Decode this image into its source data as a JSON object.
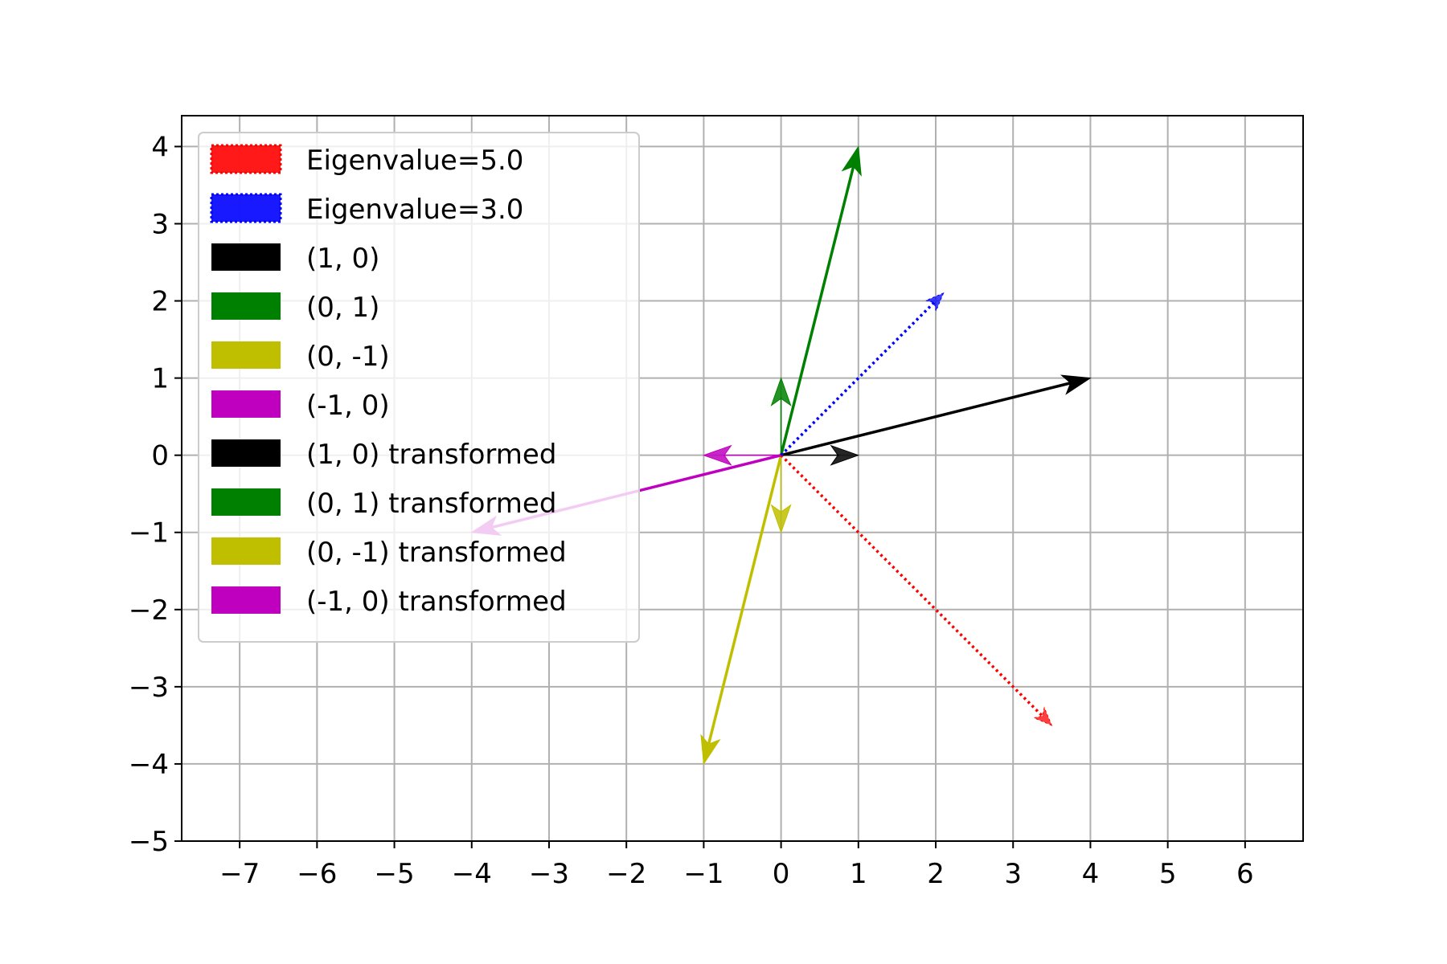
{
  "chart_data": {
    "type": "vector-field",
    "title": "",
    "xlabel": "",
    "ylabel": "",
    "xlim": [
      -7.75,
      6.75
    ],
    "ylim": [
      -5,
      4.4
    ],
    "grid": true,
    "legend_placement": "upper-left",
    "x_ticks": [
      {
        "value": -7,
        "label": "−7"
      },
      {
        "value": -6,
        "label": "−6"
      },
      {
        "value": -5,
        "label": "−5"
      },
      {
        "value": -4,
        "label": "−4"
      },
      {
        "value": -3,
        "label": "−3"
      },
      {
        "value": -2,
        "label": "−2"
      },
      {
        "value": -1,
        "label": "−1"
      },
      {
        "value": 0,
        "label": "0"
      },
      {
        "value": 1,
        "label": "1"
      },
      {
        "value": 2,
        "label": "2"
      },
      {
        "value": 3,
        "label": "3"
      },
      {
        "value": 4,
        "label": "4"
      },
      {
        "value": 5,
        "label": "5"
      },
      {
        "value": 6,
        "label": "6"
      }
    ],
    "y_ticks": [
      {
        "value": -5,
        "label": "−5"
      },
      {
        "value": -4,
        "label": "−4"
      },
      {
        "value": -3,
        "label": "−3"
      },
      {
        "value": -2,
        "label": "−2"
      },
      {
        "value": -1,
        "label": "−1"
      },
      {
        "value": 0,
        "label": "0"
      },
      {
        "value": 1,
        "label": "1"
      },
      {
        "value": 2,
        "label": "2"
      },
      {
        "value": 3,
        "label": "3"
      },
      {
        "value": 4,
        "label": "4"
      }
    ],
    "vectors": [
      {
        "name": "Eigenvalue=5.0",
        "color": "#ff0000",
        "style": "dotted",
        "from": [
          0,
          0
        ],
        "to": [
          3.5,
          -3.5
        ]
      },
      {
        "name": "Eigenvalue=3.0",
        "color": "#0000ff",
        "style": "dotted",
        "from": [
          0,
          0
        ],
        "to": [
          2.1,
          2.1
        ]
      },
      {
        "name": "(1, 0)",
        "color": "#000000",
        "style": "solid-thin",
        "from": [
          0,
          0
        ],
        "to": [
          1,
          0
        ]
      },
      {
        "name": "(0, 1)",
        "color": "#008000",
        "style": "solid-thin",
        "from": [
          0,
          0
        ],
        "to": [
          0,
          1
        ]
      },
      {
        "name": "(0, -1)",
        "color": "#bfbf00",
        "style": "solid-thin",
        "from": [
          0,
          0
        ],
        "to": [
          0,
          -1
        ]
      },
      {
        "name": "(-1, 0)",
        "color": "#bf00bf",
        "style": "solid-thin",
        "from": [
          0,
          0
        ],
        "to": [
          -1,
          0
        ]
      },
      {
        "name": "(1, 0) transformed",
        "color": "#000000",
        "style": "solid",
        "from": [
          0,
          0
        ],
        "to": [
          4,
          1
        ]
      },
      {
        "name": "(0, 1) transformed",
        "color": "#008000",
        "style": "solid",
        "from": [
          0,
          0
        ],
        "to": [
          1,
          4
        ]
      },
      {
        "name": "(0, -1) transformed",
        "color": "#bfbf00",
        "style": "solid",
        "from": [
          0,
          0
        ],
        "to": [
          -1,
          -4
        ]
      },
      {
        "name": "(-1, 0) transformed",
        "color": "#bf00bf",
        "style": "solid",
        "from": [
          0,
          0
        ],
        "to": [
          -4,
          -1
        ]
      }
    ]
  }
}
